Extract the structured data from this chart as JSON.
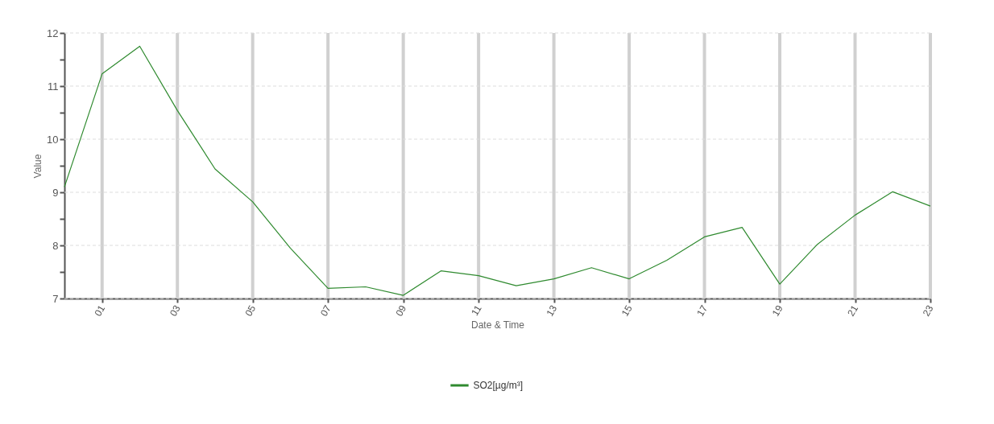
{
  "chart_data": {
    "type": "line",
    "xlabel": "Date & Time",
    "ylabel": "Value",
    "x": [
      0,
      1,
      2,
      3,
      4,
      5,
      6,
      7,
      8,
      9,
      10,
      11,
      12,
      13,
      14,
      15,
      16,
      17,
      18,
      19,
      20,
      21,
      22,
      23
    ],
    "series": [
      {
        "name": "SO2[µg/m³]",
        "color": "#2f8a2f",
        "values": [
          9.1,
          11.23,
          11.75,
          10.54,
          9.44,
          8.82,
          7.95,
          7.19,
          7.22,
          7.06,
          7.52,
          7.43,
          7.24,
          7.37,
          7.58,
          7.37,
          7.72,
          8.16,
          8.34,
          7.27,
          8.02,
          8.57,
          9.01,
          8.74
        ]
      }
    ],
    "xlim": [
      0,
      23
    ],
    "xticks": [
      {
        "value": 1,
        "label": "01"
      },
      {
        "value": 3,
        "label": "03"
      },
      {
        "value": 5,
        "label": "05"
      },
      {
        "value": 7,
        "label": "07"
      },
      {
        "value": 9,
        "label": "09"
      },
      {
        "value": 11,
        "label": "11"
      },
      {
        "value": 13,
        "label": "13"
      },
      {
        "value": 15,
        "label": "15"
      },
      {
        "value": 17,
        "label": "17"
      },
      {
        "value": 19,
        "label": "19"
      },
      {
        "value": 21,
        "label": "21"
      },
      {
        "value": 23,
        "label": "23"
      }
    ],
    "ylim": [
      7,
      12
    ],
    "yticks": [
      7,
      {
        "value": 7.5,
        "label": null
      },
      8,
      {
        "value": 8.5,
        "label": null
      },
      9,
      {
        "value": 9.5,
        "label": null
      },
      10,
      {
        "value": 10.5,
        "label": null
      },
      11,
      {
        "value": 11.5,
        "label": null
      },
      12
    ],
    "grid": true,
    "legend": "bottom",
    "marker": "none",
    "line_style": "solid"
  }
}
